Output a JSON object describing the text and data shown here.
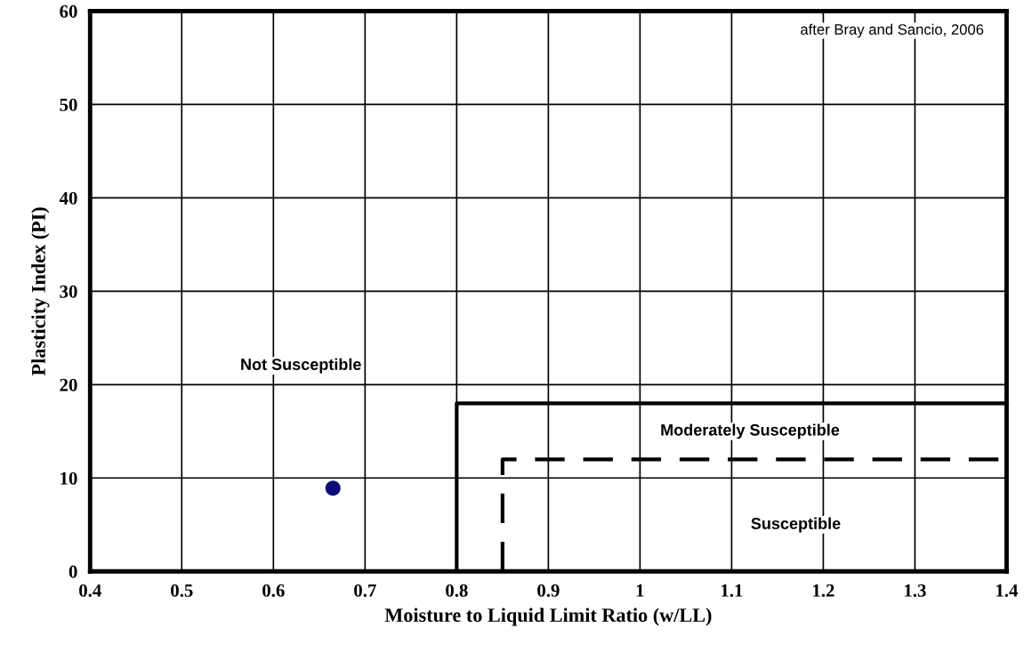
{
  "chart_data": {
    "type": "scatter",
    "xlabel": "Moisture to Liquid Limit Ratio (w/LL)",
    "ylabel": "Plasticity Index (PI)",
    "xlim": [
      0.4,
      1.4
    ],
    "ylim": [
      0,
      60
    ],
    "xticks": [
      0.4,
      0.5,
      0.6,
      0.7,
      0.8,
      0.9,
      {
        "value": 1.0,
        "label": "1"
      },
      1.1,
      1.2,
      1.3,
      1.4
    ],
    "yticks": [
      0,
      10,
      20,
      30,
      40,
      50,
      60
    ],
    "grid": true,
    "marker": "circle",
    "series": [
      {
        "color": "#0b0b7a",
        "x": [
          0.665
        ],
        "values": [
          8.9
        ]
      },
      {
        "type": "line",
        "color": "#000000",
        "line_style": "solid",
        "marker": "none",
        "x": [
          0.8,
          0.8,
          1.4
        ],
        "values": [
          0,
          18,
          18
        ]
      },
      {
        "type": "line",
        "color": "#000000",
        "line_style": "dashed",
        "marker": "none",
        "x": [
          0.85,
          0.85,
          1.4
        ],
        "values": [
          0,
          12,
          12
        ]
      }
    ],
    "annotations": [
      "Not Susceptible",
      "Moderately Susceptible",
      "Susceptible",
      "after Bray and Sancio, 2006"
    ]
  }
}
